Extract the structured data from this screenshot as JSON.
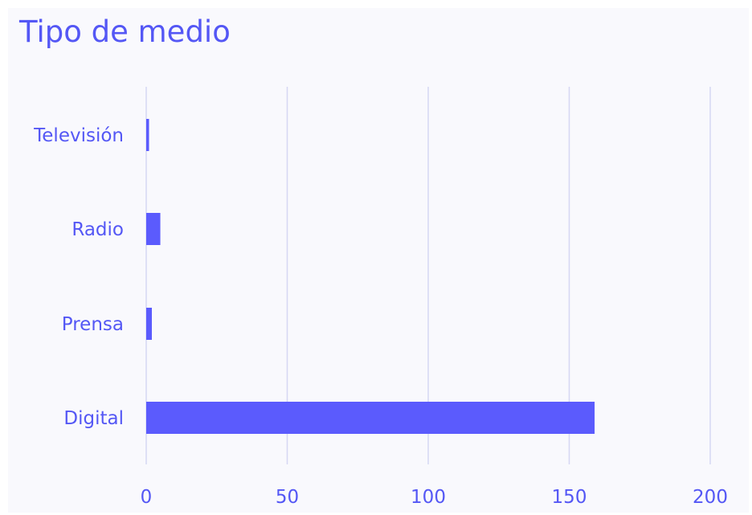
{
  "chart_data": {
    "type": "bar",
    "orientation": "horizontal",
    "title": "Tipo de medio",
    "categories": [
      "Televisión",
      "Radio",
      "Prensa",
      "Digital"
    ],
    "values": [
      1,
      5,
      2,
      159
    ],
    "xlim": [
      0,
      200
    ],
    "xticks": [
      0,
      50,
      100,
      150,
      200
    ],
    "xlabel": "",
    "ylabel": "",
    "grid": "vertical",
    "legend": "none",
    "colors": {
      "bar": "#5b5bfd",
      "grid": "#d6d7f4",
      "text": "#5457f5",
      "background": "#f9f9fd"
    }
  }
}
